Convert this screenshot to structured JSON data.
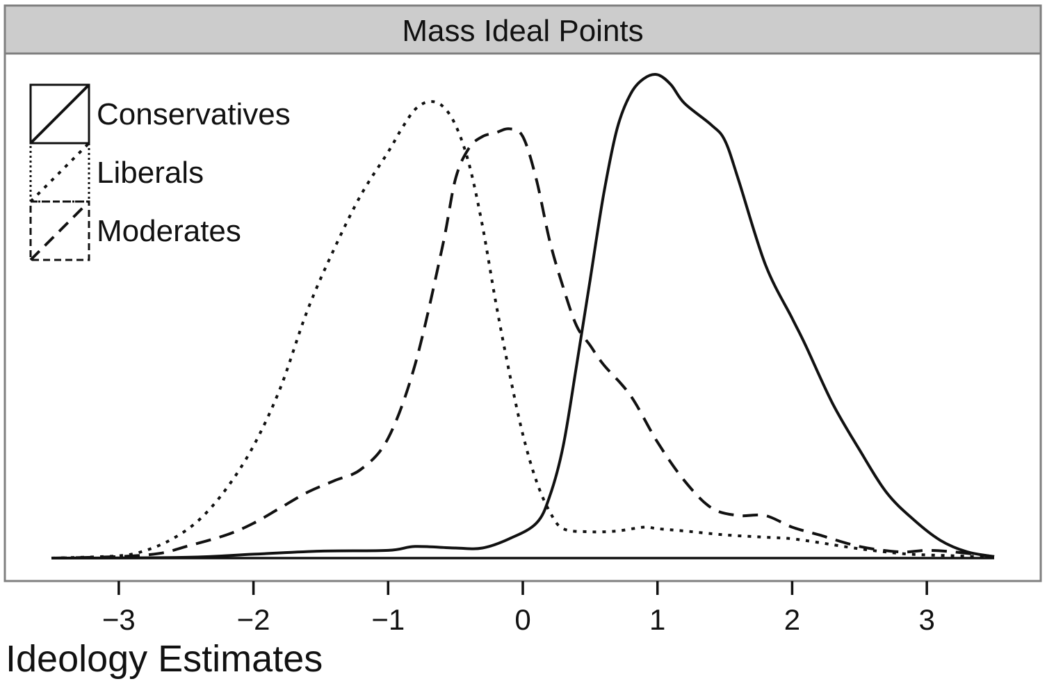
{
  "chart_data": {
    "type": "line",
    "title": "Mass Ideal Points",
    "xlabel": "Ideology Estimates",
    "ylabel": "",
    "xlim": [
      -3.5,
      3.5
    ],
    "ylim": [
      0,
      0.62
    ],
    "x_ticks": [
      -3,
      -2,
      -1,
      0,
      1,
      2,
      3
    ],
    "x_tick_labels": [
      "−3",
      "−2",
      "−1",
      "0",
      "1",
      "2",
      "3"
    ],
    "y_axis_shown": false,
    "grid": false,
    "legend_position": "top-left",
    "series": [
      {
        "name": "Conservatives",
        "line_style": "solid",
        "color": "#111111",
        "x": [
          -3.5,
          -2.5,
          -2.0,
          -1.5,
          -1.0,
          -0.8,
          -0.5,
          -0.3,
          -0.1,
          0.1,
          0.2,
          0.3,
          0.4,
          0.5,
          0.6,
          0.7,
          0.8,
          0.9,
          1.0,
          1.1,
          1.2,
          1.4,
          1.5,
          1.6,
          1.8,
          2.0,
          2.1,
          2.3,
          2.5,
          2.7,
          2.9,
          3.1,
          3.3,
          3.5
        ],
        "values": [
          0.0,
          0.001,
          0.005,
          0.009,
          0.01,
          0.015,
          0.013,
          0.013,
          0.025,
          0.045,
          0.08,
          0.145,
          0.25,
          0.36,
          0.47,
          0.555,
          0.6,
          0.62,
          0.625,
          0.612,
          0.588,
          0.56,
          0.54,
          0.49,
          0.38,
          0.31,
          0.275,
          0.2,
          0.14,
          0.085,
          0.05,
          0.023,
          0.008,
          0.002
        ]
      },
      {
        "name": "Liberals",
        "line_style": "dotted",
        "color": "#111111",
        "x": [
          -3.5,
          -3.0,
          -2.8,
          -2.6,
          -2.4,
          -2.2,
          -2.0,
          -1.8,
          -1.6,
          -1.4,
          -1.2,
          -1.0,
          -0.9,
          -0.8,
          -0.7,
          -0.6,
          -0.5,
          -0.4,
          -0.3,
          -0.2,
          -0.1,
          0.0,
          0.1,
          0.2,
          0.3,
          0.5,
          0.7,
          0.9,
          1.0,
          1.2,
          1.5,
          1.8,
          2.0,
          2.2,
          2.5,
          2.8,
          3.0,
          3.2,
          3.5
        ],
        "values": [
          0.0,
          0.003,
          0.01,
          0.025,
          0.05,
          0.09,
          0.145,
          0.22,
          0.32,
          0.4,
          0.47,
          0.525,
          0.555,
          0.58,
          0.59,
          0.585,
          0.56,
          0.51,
          0.43,
          0.33,
          0.24,
          0.16,
          0.1,
          0.06,
          0.038,
          0.034,
          0.035,
          0.04,
          0.038,
          0.035,
          0.03,
          0.027,
          0.025,
          0.02,
          0.012,
          0.006,
          0.004,
          0.003,
          0.001
        ]
      },
      {
        "name": "Moderates",
        "line_style": "dashed",
        "color": "#111111",
        "x": [
          -3.5,
          -3.0,
          -2.7,
          -2.5,
          -2.2,
          -2.0,
          -1.8,
          -1.6,
          -1.4,
          -1.2,
          -1.0,
          -0.8,
          -0.6,
          -0.5,
          -0.4,
          -0.3,
          -0.2,
          -0.1,
          0.0,
          0.1,
          0.2,
          0.3,
          0.4,
          0.5,
          0.6,
          0.8,
          1.0,
          1.2,
          1.4,
          1.6,
          1.8,
          2.0,
          2.2,
          2.5,
          2.8,
          3.0,
          3.2,
          3.5
        ],
        "values": [
          0.0,
          0.002,
          0.006,
          0.015,
          0.03,
          0.045,
          0.065,
          0.085,
          0.1,
          0.115,
          0.155,
          0.25,
          0.4,
          0.49,
          0.53,
          0.545,
          0.55,
          0.555,
          0.545,
          0.49,
          0.41,
          0.35,
          0.3,
          0.275,
          0.25,
          0.21,
          0.15,
          0.1,
          0.065,
          0.055,
          0.055,
          0.04,
          0.03,
          0.015,
          0.008,
          0.01,
          0.008,
          0.002
        ]
      }
    ]
  }
}
